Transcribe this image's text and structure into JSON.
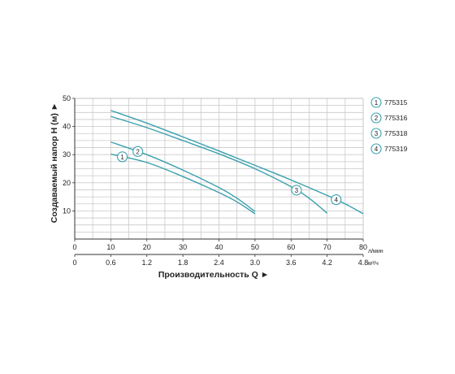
{
  "chart_data": {
    "type": "line",
    "ylabel": "Создаваемый напор H (м) ►",
    "xlabel": "Производительность Q ►",
    "x_unit_primary": "л/мин",
    "x_unit_secondary": "м³/ч",
    "xlim": [
      0,
      80
    ],
    "ylim": [
      0,
      50
    ],
    "x_ticks": [
      0,
      10,
      20,
      30,
      40,
      50,
      60,
      70,
      80
    ],
    "x_ticks_secondary": [
      {
        "at": 0,
        "label": "0"
      },
      {
        "at": 10,
        "label": "0.6"
      },
      {
        "at": 20,
        "label": "1.2"
      },
      {
        "at": 30,
        "label": "1.8"
      },
      {
        "at": 40,
        "label": "2.4"
      },
      {
        "at": 50,
        "label": "3.0"
      },
      {
        "at": 60,
        "label": "3.6"
      },
      {
        "at": 70,
        "label": "4.2"
      },
      {
        "at": 80,
        "label": "4.8"
      }
    ],
    "y_ticks": [
      10,
      20,
      30,
      40,
      50
    ],
    "grid": true,
    "line_color": "#3aa0ad",
    "legend_position": "right",
    "series": [
      {
        "name": "775315",
        "marker": "1",
        "marker_at": 13.2,
        "x": [
          10,
          20,
          30,
          40,
          45,
          50
        ],
        "y": [
          30.2,
          27.2,
          22.2,
          16.5,
          13.2,
          9.0
        ]
      },
      {
        "name": "775316",
        "marker": "2",
        "marker_at": 17.5,
        "x": [
          10,
          20,
          30,
          40,
          45,
          50
        ],
        "y": [
          34.5,
          30.0,
          24.5,
          18.3,
          14.5,
          9.8
        ]
      },
      {
        "name": "775318",
        "marker": "3",
        "marker_at": 61.5,
        "x": [
          10,
          20,
          30,
          40,
          50,
          60,
          65,
          70
        ],
        "y": [
          43.6,
          39.6,
          35.0,
          30.3,
          25.0,
          18.6,
          14.5,
          9.2
        ]
      },
      {
        "name": "775319",
        "marker": "4",
        "marker_at": 72.5,
        "x": [
          10,
          20,
          30,
          40,
          50,
          60,
          70,
          75,
          80
        ],
        "y": [
          45.7,
          41.2,
          36.3,
          31.3,
          26.2,
          21.0,
          15.5,
          12.5,
          9.0
        ]
      }
    ]
  }
}
